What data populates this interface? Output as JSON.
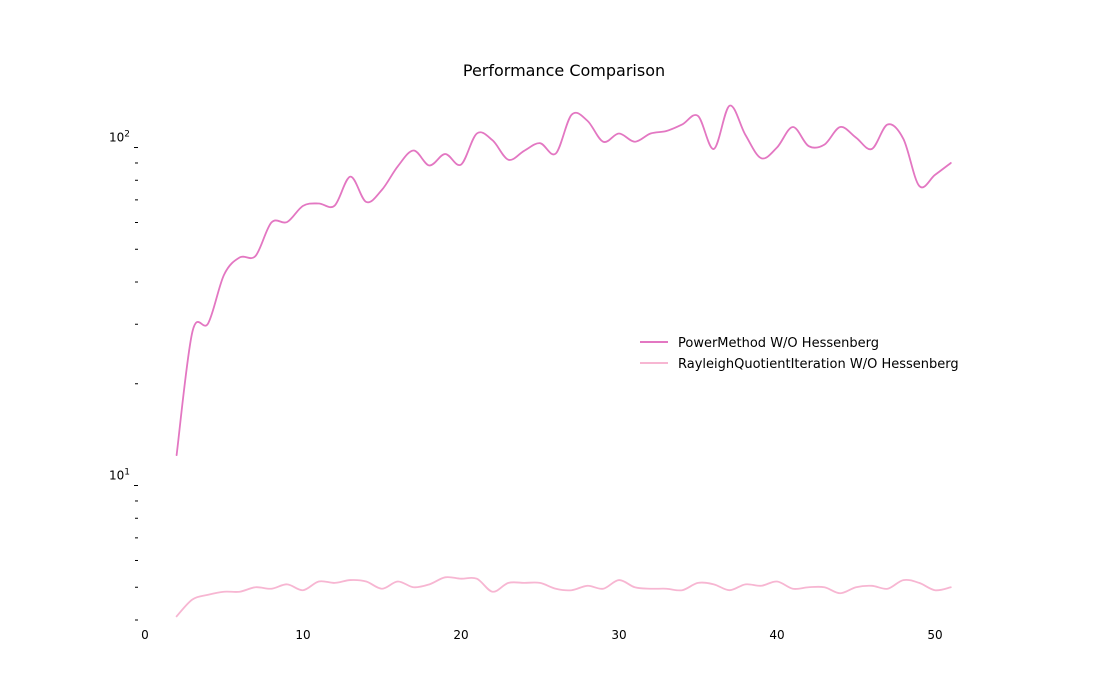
{
  "chart_data": {
    "type": "line",
    "title": "Performance Comparison",
    "xlabel": "",
    "ylabel": "",
    "xlim": [
      0,
      52
    ],
    "ylim": [
      4.0,
      150
    ],
    "yscale": "log",
    "grid": false,
    "legend_position": "center-right",
    "x_ticks": [
      0,
      10,
      20,
      30,
      40,
      50
    ],
    "y_major_ticks": [
      {
        "value": 10,
        "base": "10",
        "exp": "1"
      },
      {
        "value": 100,
        "base": "10",
        "exp": "2"
      }
    ],
    "y_minor_ticks": [
      4,
      5,
      6,
      7,
      8,
      9,
      20,
      30,
      40,
      50,
      60,
      70,
      80,
      90
    ],
    "x": [
      2,
      3,
      4,
      5,
      6,
      7,
      8,
      9,
      10,
      11,
      12,
      13,
      14,
      15,
      16,
      17,
      18,
      19,
      20,
      21,
      22,
      23,
      24,
      25,
      26,
      27,
      28,
      29,
      30,
      31,
      32,
      33,
      34,
      35,
      36,
      37,
      38,
      39,
      40,
      41,
      42,
      43,
      44,
      45,
      46,
      47,
      48,
      49,
      50,
      51
    ],
    "series": [
      {
        "name": "PowerMethod W/O Hessenberg",
        "color": "#e377c2",
        "values": [
          12.3,
          28.5,
          30.2,
          42,
          47.3,
          47.8,
          60,
          60.2,
          67.2,
          68.3,
          67.3,
          82,
          69,
          75,
          88,
          98,
          88.5,
          95.7,
          89,
          110,
          105,
          92,
          97.8,
          103,
          96,
          125,
          120,
          104,
          110,
          104,
          110,
          111.9,
          117,
          124,
          99,
          133,
          109,
          93,
          100,
          115,
          101,
          102,
          115,
          107,
          99,
          117,
          106,
          77,
          83,
          90
        ]
      },
      {
        "name": "RayleighQuotientIteration W/O Hessenberg",
        "color": "#f7b6d2",
        "values": [
          4.1,
          4.6,
          4.75,
          4.85,
          4.85,
          5.0,
          4.95,
          5.1,
          4.9,
          5.2,
          5.15,
          5.25,
          5.2,
          4.95,
          5.2,
          5.0,
          5.1,
          5.35,
          5.3,
          5.3,
          4.85,
          5.15,
          5.15,
          5.15,
          4.95,
          4.9,
          5.05,
          4.95,
          5.25,
          5.0,
          4.95,
          4.95,
          4.9,
          5.15,
          5.1,
          4.9,
          5.1,
          5.05,
          5.2,
          4.95,
          5.0,
          5.0,
          4.8,
          5.0,
          5.05,
          4.95,
          5.25,
          5.15,
          4.9,
          5.0
        ]
      }
    ]
  }
}
